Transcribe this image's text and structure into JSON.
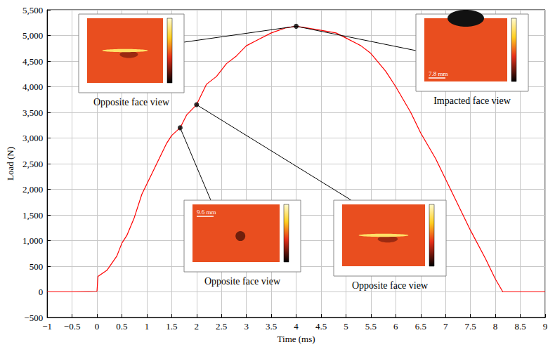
{
  "chart_data": {
    "type": "line",
    "color": "#ff0000",
    "x_label": "Time (ms)",
    "y_label": "Load (N)",
    "grid": true,
    "xlim": [
      -1,
      9
    ],
    "xticks": [
      {
        "value": -1,
        "label": "−1"
      },
      {
        "value": -0.5,
        "label": "−0.5"
      },
      0,
      0.5,
      1,
      1.5,
      2,
      2.5,
      3,
      3.5,
      4,
      4.5,
      5,
      5.5,
      6,
      6.5,
      7,
      7.5,
      8,
      8.5,
      9
    ],
    "ylim": [
      -500,
      5500
    ],
    "yticks": [
      {
        "value": -500,
        "label": "−500"
      },
      0,
      500,
      {
        "value": 1000,
        "label": "1,000"
      },
      {
        "value": 1500,
        "label": "1,500"
      },
      {
        "value": 2000,
        "label": "2,000"
      },
      {
        "value": 2500,
        "label": "2,500"
      },
      {
        "value": 3000,
        "label": "3,000"
      },
      {
        "value": 3500,
        "label": "3,500"
      },
      {
        "value": 4000,
        "label": "4,000"
      },
      {
        "value": 4500,
        "label": "4,500"
      },
      {
        "value": 5000,
        "label": "5,000"
      },
      {
        "value": 5500,
        "label": "5,500"
      }
    ],
    "x": [
      -1,
      -0.5,
      0,
      0.02,
      0.2,
      0.4,
      0.5,
      0.6,
      0.75,
      0.9,
      1.0,
      1.2,
      1.4,
      1.5,
      1.67,
      1.8,
      2.0,
      2.2,
      2.4,
      2.6,
      2.8,
      3.0,
      3.2,
      3.5,
      3.8,
      4.0,
      4.2,
      4.5,
      4.8,
      5.0,
      5.3,
      5.5,
      5.8,
      6.0,
      6.3,
      6.5,
      6.8,
      7.0,
      7.3,
      7.5,
      7.8,
      8.0,
      8.15,
      8.5,
      9
    ],
    "values": [
      0,
      0,
      10,
      300,
      420,
      700,
      950,
      1100,
      1450,
      1900,
      2100,
      2500,
      2900,
      3050,
      3200,
      3450,
      3650,
      4050,
      4200,
      4450,
      4600,
      4800,
      4900,
      5050,
      5150,
      5180,
      5150,
      5100,
      5050,
      4950,
      4800,
      4650,
      4300,
      4000,
      3500,
      3100,
      2600,
      2200,
      1600,
      1200,
      650,
      250,
      0,
      0,
      0
    ],
    "annotations": [
      {
        "caption": "Opposite face view",
        "x": 4.0,
        "y": 5180
      },
      {
        "caption": "Impacted face view",
        "x": 4.0,
        "y": 5180,
        "scale_label": "7.8 mm"
      },
      {
        "caption": "Opposite face view",
        "x": 1.67,
        "y": 3200,
        "scale_label": "9.6 mm"
      },
      {
        "caption": "Opposite face view",
        "x": 2.0,
        "y": 3650
      }
    ]
  }
}
